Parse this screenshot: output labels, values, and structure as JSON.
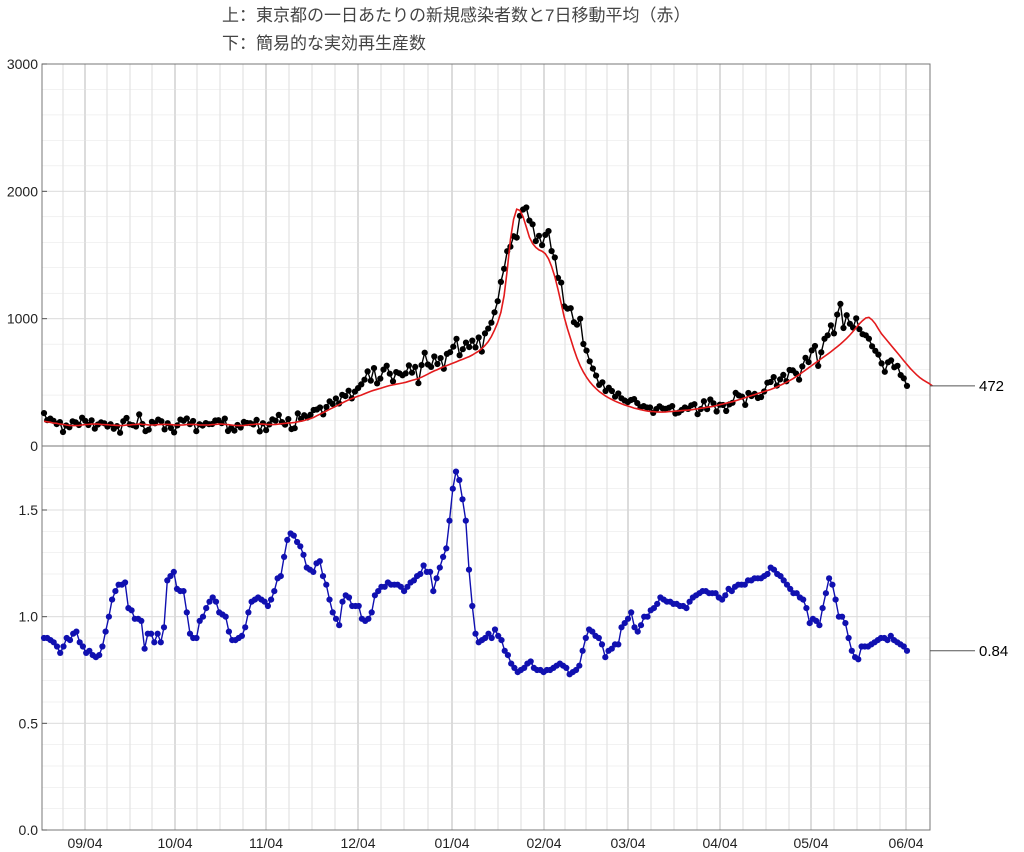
{
  "titles": {
    "line1": "上：東京都の一日あたりの新規感染者数と7日移動平均（赤）",
    "line2": "下：簡易的な実効再生産数"
  },
  "colors": {
    "cases": "#000000",
    "moving_average": "#e31a1c",
    "reproduction": "#1010b0",
    "grid": "#c8c8c8"
  },
  "chart_data": [
    {
      "type": "line",
      "title": "上：東京都の一日あたりの新規感染者数と7日移動平均（赤）",
      "x_tick_labels": [
        "09/04",
        "10/04",
        "11/04",
        "12/04",
        "01/04",
        "02/04",
        "03/04",
        "04/04",
        "05/04",
        "06/04"
      ],
      "ylim": [
        0,
        3000
      ],
      "y_ticks": [
        0,
        1000,
        2000,
        3000
      ],
      "grid": true,
      "end_label": "472",
      "series": [
        {
          "key": "cases",
          "marker": "dot",
          "values": [
            258,
            203,
            215,
            198,
            172,
            188,
            110,
            161,
            147,
            194,
            185,
            165,
            222,
            198,
            165,
            202,
            136,
            169,
            185,
            178,
            152,
            171,
            135,
            156,
            104,
            195,
            220,
            170,
            163,
            153,
            248,
            173,
            116,
            128,
            190,
            178,
            207,
            195,
            130,
            179,
            141,
            107,
            162,
            207,
            198,
            216,
            171,
            196,
            116,
            171,
            160,
            180,
            171,
            173,
            200,
            203,
            179,
            215,
            118,
            141,
            121,
            165,
            145,
            189,
            181,
            179,
            170,
            205,
            115,
            179,
            124,
            170,
            209,
            199,
            244,
            188,
            167,
            211,
            133,
            140,
            256,
            213,
            242,
            224,
            246,
            283,
            287,
            302,
            248,
            306,
            350,
            329,
            373,
            334,
            402,
            392,
            434,
            374,
            427,
            455,
            484,
            521,
            586,
            513,
            612,
            492,
            529,
            600,
            631,
            568,
            507,
            580,
            571,
            555,
            570,
            633,
            576,
            621,
            493,
            635,
            733,
            640,
            621,
            703,
            644,
            690,
            606,
            723,
            737,
            780,
            842,
            712,
            760,
            812,
            777,
            828,
            774,
            852,
            741,
            884,
            922,
            968,
            1050,
            1137,
            1289,
            1392,
            1530,
            1565,
            1648,
            1637,
            1808,
            1857,
            1873,
            1770,
            1741,
            1609,
            1651,
            1577,
            1658,
            1688,
            1531,
            1480,
            1320,
            1283,
            1096,
            1078,
            1082,
            972,
            953,
            1000,
            801,
            749,
            665,
            608,
            553,
            480,
            500,
            432,
            458,
            432,
            387,
            412,
            375,
            357,
            345,
            361,
            368,
            337,
            305,
            313,
            302,
            302,
            260,
            290,
            312,
            295,
            292,
            301,
            313,
            255,
            262,
            283,
            302,
            291,
            320,
            328,
            250,
            290,
            352,
            289,
            365,
            335,
            271,
            324,
            322,
            275,
            327,
            339,
            417,
            397,
            388,
            323,
            416,
            393,
            409,
            377,
            385,
            428,
            497,
            503,
            541,
            474,
            523,
            558,
            508,
            597,
            594,
            569,
            521,
            625,
            693,
            659,
            751,
            785,
            629,
            736,
            842,
            869,
            948,
            884,
            1032,
            1116,
            927,
            1027,
            960,
            930,
            1003,
            917,
            878,
            869,
            843,
            783,
            748,
            718,
            649,
            583,
            657,
            672,
            618,
            630,
            557,
            532,
            472
          ],
          "visual_noise": "day-to-day"
        },
        {
          "key": "moving_average",
          "marker": "none",
          "values": [
            194,
            190,
            186,
            180,
            178,
            172,
            170,
            165,
            162,
            160,
            160,
            162,
            165,
            168,
            170,
            172,
            172,
            172,
            170,
            168,
            167,
            165,
            163,
            162,
            160,
            162,
            164,
            166,
            168,
            170,
            172,
            170,
            168,
            166,
            165,
            166,
            168,
            170,
            170,
            170,
            168,
            166,
            164,
            164,
            166,
            168,
            170,
            170,
            168,
            166,
            165,
            165,
            166,
            168,
            170,
            172,
            172,
            170,
            168,
            165,
            162,
            160,
            160,
            162,
            165,
            168,
            170,
            172,
            172,
            172,
            170,
            168,
            168,
            170,
            172,
            175,
            178,
            180,
            182,
            185,
            190,
            195,
            200,
            208,
            215,
            225,
            238,
            250,
            262,
            275,
            288,
            300,
            312,
            325,
            338,
            350,
            362,
            372,
            382,
            392,
            400,
            410,
            420,
            430,
            438,
            445,
            452,
            460,
            468,
            475,
            480,
            485,
            490,
            495,
            500,
            508,
            515,
            522,
            530,
            540,
            552,
            565,
            578,
            590,
            600,
            612,
            622,
            632,
            642,
            652,
            662,
            672,
            682,
            692,
            702,
            715,
            730,
            745,
            765,
            790,
            820,
            860,
            910,
            970,
            1050,
            1180,
            1380,
            1620,
            1780,
            1860,
            1850,
            1800,
            1720,
            1640,
            1590,
            1560,
            1540,
            1530,
            1510,
            1470,
            1410,
            1330,
            1230,
            1120,
            1010,
            920,
            840,
            760,
            690,
            630,
            580,
            540,
            505,
            475,
            450,
            428,
            410,
            392,
            378,
            365,
            352,
            342,
            332,
            322,
            314,
            306,
            298,
            292,
            286,
            280,
            276,
            272,
            270,
            268,
            266,
            266,
            268,
            270,
            272,
            274,
            276,
            278,
            280,
            282,
            284,
            288,
            292,
            296,
            300,
            304,
            308,
            312,
            318,
            324,
            330,
            336,
            342,
            348,
            356,
            364,
            372,
            380,
            388,
            396,
            404,
            412,
            420,
            428,
            436,
            444,
            454,
            464,
            476,
            488,
            500,
            514,
            528,
            544,
            560,
            578,
            596,
            614,
            632,
            650,
            668,
            686,
            704,
            722,
            740,
            760,
            780,
            800,
            822,
            846,
            872,
            900,
            930,
            960,
            985,
            1005,
            1010,
            990,
            960,
            920,
            880,
            850,
            820,
            790,
            760,
            730,
            700,
            670,
            640,
            610,
            585,
            560,
            538,
            520,
            505,
            490,
            472
          ]
        }
      ]
    },
    {
      "type": "line",
      "title": "下：簡易的な実効再生産数",
      "x_tick_labels": [
        "09/04",
        "10/04",
        "11/04",
        "12/04",
        "01/04",
        "02/04",
        "03/04",
        "04/04",
        "05/04",
        "06/04"
      ],
      "ylim": [
        0,
        1.8
      ],
      "y_ticks": [
        0.0,
        0.5,
        1.0,
        1.5
      ],
      "y_tick_labels": [
        "0.0",
        "0.5",
        "1.0",
        "1.5"
      ],
      "grid": true,
      "end_label": "0.84",
      "series": [
        {
          "key": "reproduction",
          "marker": "dot",
          "values": [
            0.9,
            0.9,
            0.89,
            0.88,
            0.86,
            0.83,
            0.86,
            0.9,
            0.89,
            0.92,
            0.93,
            0.88,
            0.86,
            0.83,
            0.84,
            0.82,
            0.81,
            0.82,
            0.86,
            0.93,
            1.0,
            1.08,
            1.12,
            1.15,
            1.15,
            1.16,
            1.04,
            1.03,
            0.99,
            0.99,
            0.98,
            0.85,
            0.92,
            0.92,
            0.88,
            0.92,
            0.88,
            0.95,
            1.17,
            1.19,
            1.21,
            1.13,
            1.12,
            1.12,
            1.02,
            0.92,
            0.9,
            0.9,
            0.98,
            1.0,
            1.04,
            1.07,
            1.09,
            1.07,
            1.02,
            1.01,
            1.0,
            0.93,
            0.89,
            0.89,
            0.9,
            0.91,
            0.95,
            1.02,
            1.07,
            1.08,
            1.09,
            1.08,
            1.07,
            1.05,
            1.08,
            1.12,
            1.18,
            1.19,
            1.28,
            1.36,
            1.39,
            1.38,
            1.35,
            1.33,
            1.29,
            1.23,
            1.22,
            1.21,
            1.25,
            1.26,
            1.19,
            1.15,
            1.08,
            1.02,
            0.99,
            0.96,
            1.07,
            1.1,
            1.09,
            1.05,
            1.05,
            1.05,
            0.99,
            0.98,
            0.99,
            1.02,
            1.1,
            1.12,
            1.14,
            1.14,
            1.16,
            1.15,
            1.15,
            1.15,
            1.14,
            1.12,
            1.14,
            1.16,
            1.17,
            1.19,
            1.2,
            1.24,
            1.21,
            1.21,
            1.12,
            1.18,
            1.23,
            1.28,
            1.32,
            1.45,
            1.6,
            1.68,
            1.64,
            1.55,
            1.45,
            1.22,
            1.05,
            0.92,
            0.88,
            0.89,
            0.9,
            0.92,
            0.9,
            0.94,
            0.91,
            0.89,
            0.84,
            0.82,
            0.78,
            0.76,
            0.74,
            0.75,
            0.76,
            0.78,
            0.79,
            0.76,
            0.75,
            0.75,
            0.74,
            0.75,
            0.75,
            0.76,
            0.77,
            0.78,
            0.77,
            0.76,
            0.73,
            0.74,
            0.75,
            0.77,
            0.84,
            0.9,
            0.94,
            0.93,
            0.91,
            0.9,
            0.87,
            0.81,
            0.84,
            0.85,
            0.87,
            0.87,
            0.95,
            0.97,
            0.99,
            1.02,
            0.95,
            0.93,
            0.96,
            1.0,
            1.0,
            1.03,
            1.04,
            1.06,
            1.09,
            1.08,
            1.07,
            1.07,
            1.06,
            1.06,
            1.05,
            1.05,
            1.04,
            1.07,
            1.09,
            1.1,
            1.11,
            1.12,
            1.12,
            1.11,
            1.11,
            1.11,
            1.09,
            1.08,
            1.1,
            1.13,
            1.12,
            1.14,
            1.15,
            1.15,
            1.15,
            1.17,
            1.17,
            1.18,
            1.18,
            1.18,
            1.19,
            1.2,
            1.23,
            1.22,
            1.2,
            1.19,
            1.17,
            1.15,
            1.13,
            1.11,
            1.11,
            1.09,
            1.08,
            1.04,
            0.97,
            0.99,
            0.98,
            0.96,
            1.04,
            1.11,
            1.18,
            1.15,
            1.08,
            1.0,
            1.0,
            0.97,
            0.9,
            0.84,
            0.81,
            0.8,
            0.86,
            0.86,
            0.86,
            0.87,
            0.88,
            0.89,
            0.9,
            0.9,
            0.89,
            0.91,
            0.89,
            0.88,
            0.87,
            0.86,
            0.84
          ]
        }
      ]
    }
  ]
}
